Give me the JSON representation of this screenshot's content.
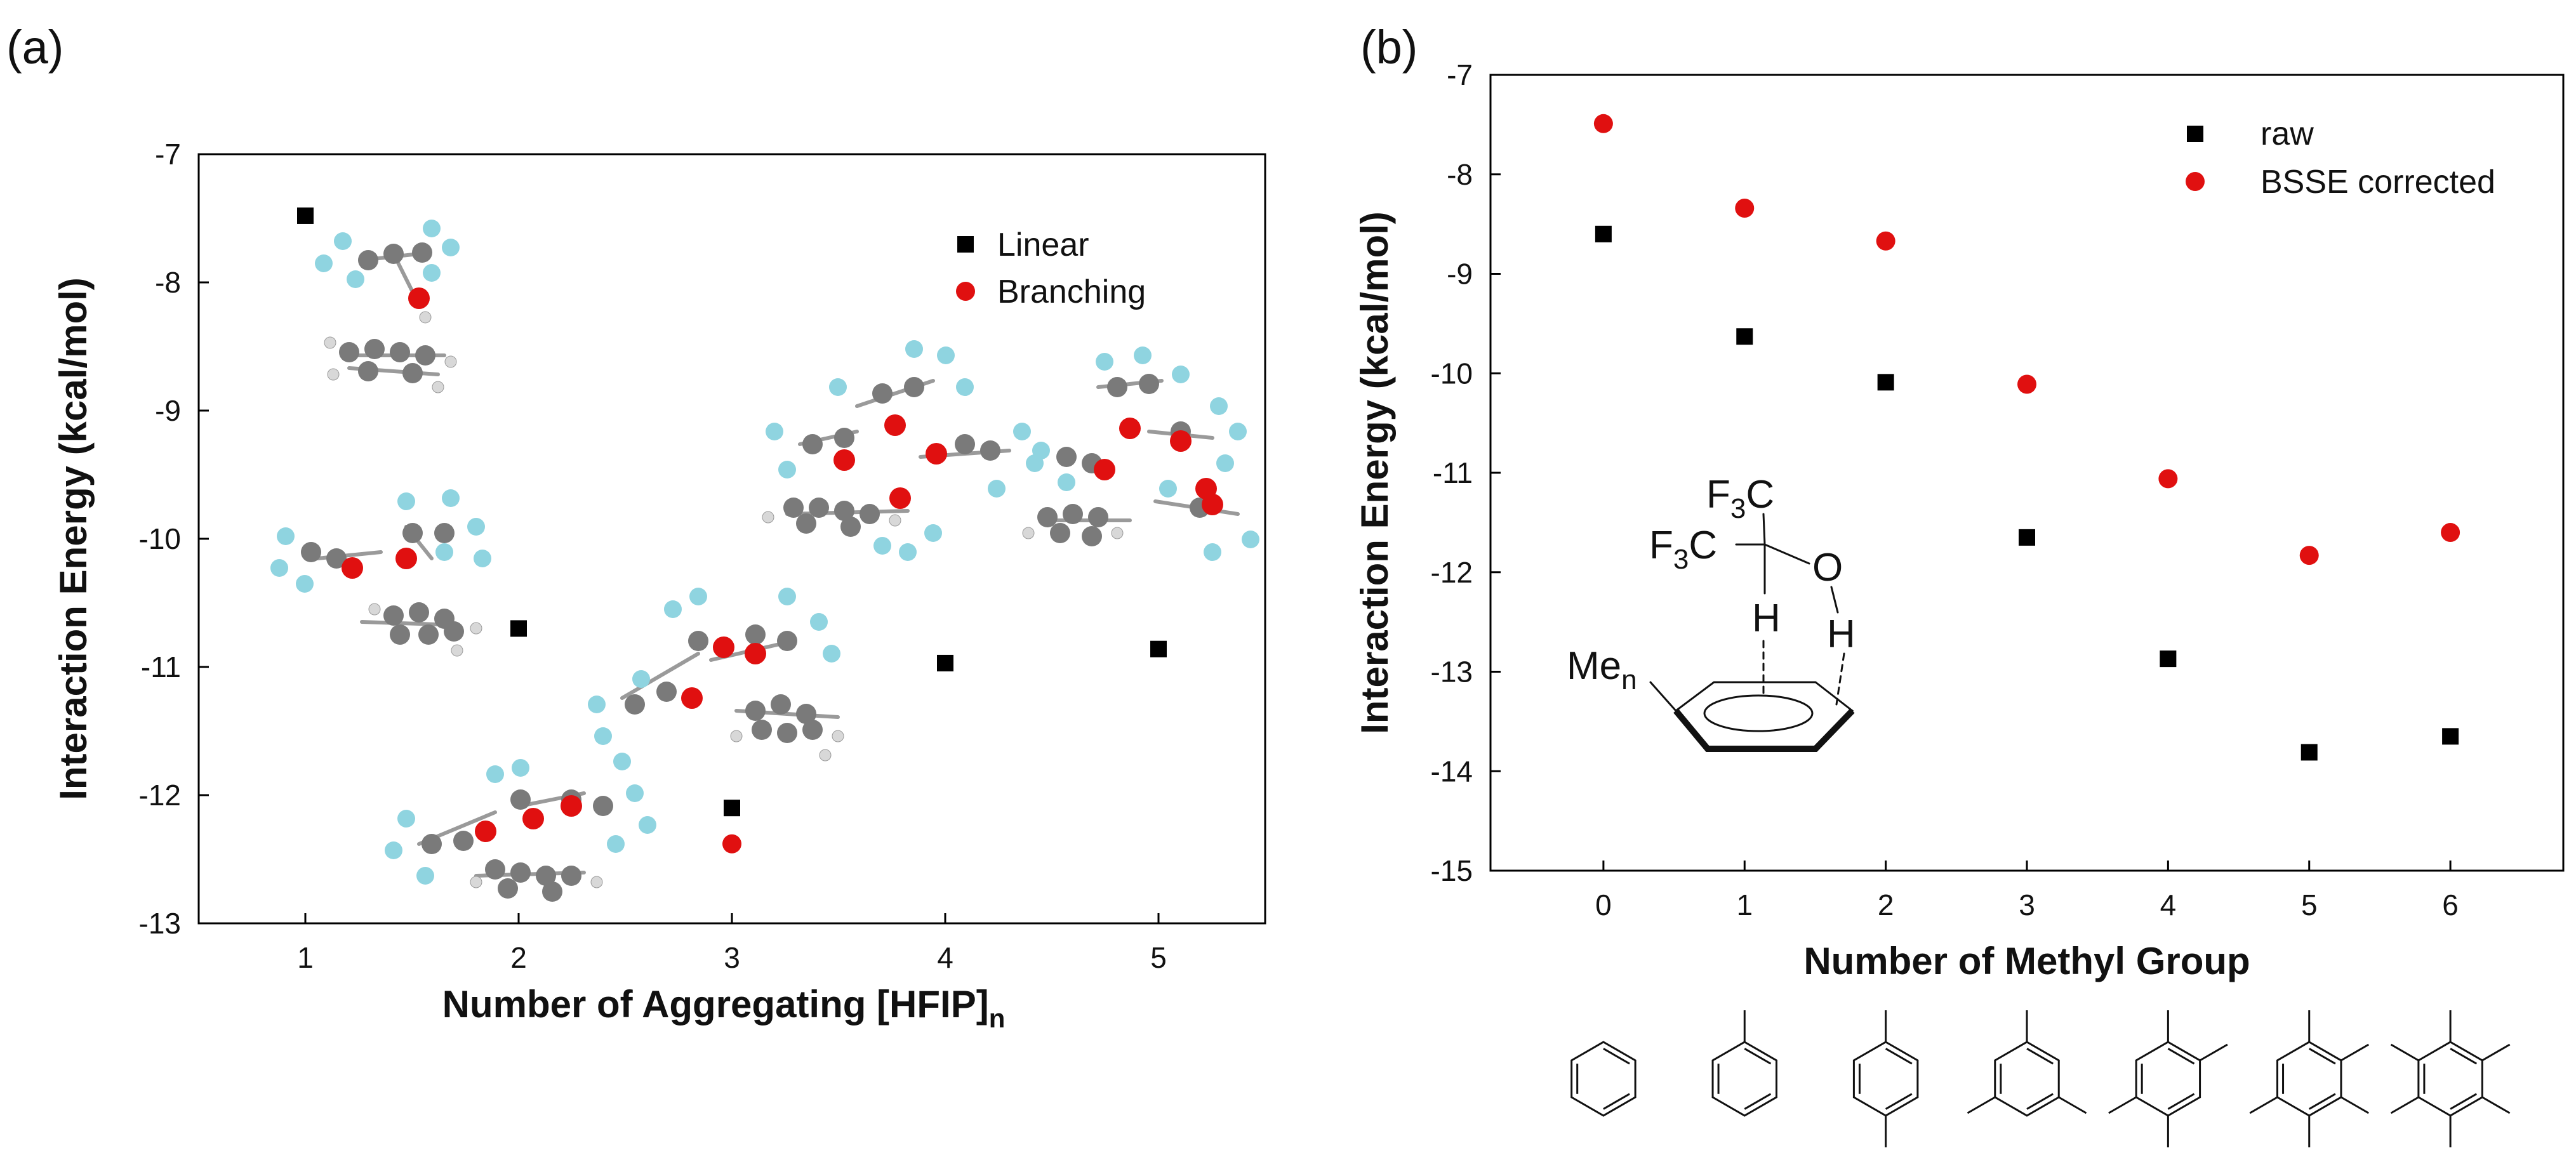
{
  "panel_labels": {
    "a": "(a)",
    "b": "(b)"
  },
  "colors": {
    "linear": "#000000",
    "branching": "#e01010",
    "raw": "#000000",
    "bsse": "#e01010"
  },
  "chart_data": [
    {
      "id": "a",
      "type": "scatter",
      "title": "",
      "xlabel": "Number of Aggregating [HFIP]",
      "xlabel_subscript": "n",
      "ylabel": "Interaction Energy (kcal/mol)",
      "xlim": [
        0.5,
        5.5
      ],
      "ylim": [
        -13,
        -7
      ],
      "xticks": [
        1,
        2,
        3,
        4,
        5
      ],
      "yticks": [
        -7,
        -8,
        -9,
        -10,
        -11,
        -12,
        -13
      ],
      "legend_position": "top-right",
      "series": [
        {
          "name": "Linear",
          "marker": "square",
          "color": "#000000",
          "points": [
            {
              "x": 1,
              "y": -7.48
            },
            {
              "x": 2,
              "y": -10.7
            },
            {
              "x": 3,
              "y": -12.1
            },
            {
              "x": 4,
              "y": -10.97
            },
            {
              "x": 5,
              "y": -10.86
            }
          ]
        },
        {
          "name": "Branching",
          "marker": "circle",
          "color": "#e01010",
          "points": [
            {
              "x": 3,
              "y": -12.38
            }
          ]
        }
      ]
    },
    {
      "id": "b",
      "type": "scatter",
      "title": "",
      "xlabel": "Number of Methyl Group",
      "ylabel": "Interaction Energy (kcal/mol)",
      "xlim": [
        -0.8,
        6.8
      ],
      "ylim": [
        -15,
        -7
      ],
      "xticks": [
        0,
        1,
        2,
        3,
        4,
        5,
        6
      ],
      "yticks": [
        -7,
        -8,
        -9,
        -10,
        -11,
        -12,
        -13,
        -14,
        -15
      ],
      "legend_position": "top-right",
      "series": [
        {
          "name": "raw",
          "marker": "square",
          "color": "#000000",
          "points": [
            {
              "x": 0,
              "y": -8.6
            },
            {
              "x": 1,
              "y": -9.63
            },
            {
              "x": 2,
              "y": -10.09
            },
            {
              "x": 3,
              "y": -11.65
            },
            {
              "x": 4,
              "y": -12.87
            },
            {
              "x": 5,
              "y": -13.81
            },
            {
              "x": 6,
              "y": -13.65
            }
          ]
        },
        {
          "name": "BSSE corrected",
          "marker": "circle",
          "color": "#e01010",
          "points": [
            {
              "x": 0,
              "y": -7.49
            },
            {
              "x": 1,
              "y": -8.34
            },
            {
              "x": 2,
              "y": -8.67
            },
            {
              "x": 3,
              "y": -10.11
            },
            {
              "x": 4,
              "y": -11.06
            },
            {
              "x": 5,
              "y": -11.83
            },
            {
              "x": 6,
              "y": -11.6
            }
          ]
        }
      ]
    }
  ],
  "structure_labels": {
    "cf3_top": "F",
    "sub3_top": "3",
    "c_top": "C",
    "cf3_left": "F",
    "sub3_left": "3",
    "c_left": "C",
    "o": "O",
    "h_ch": "H",
    "h_oh": "H",
    "me": "Me",
    "me_sub": "n"
  }
}
